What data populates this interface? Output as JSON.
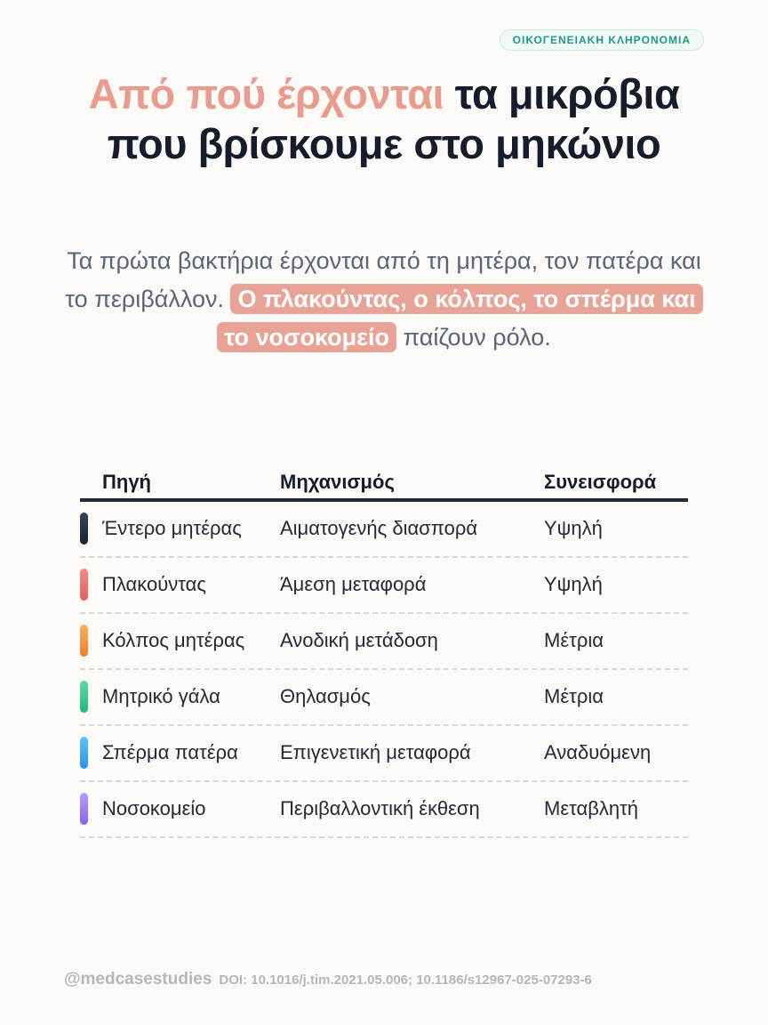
{
  "tag": "ΟΙΚΟΓΕΝΕΙΑΚΗ ΚΛΗΡΟΝΟΜΙΑ",
  "title": {
    "highlight": "Από πού έρχονται",
    "line1_rest": "τα μικρόβια",
    "line2": "που βρίσκουμε στο μηκώνιο"
  },
  "intro": {
    "before": "Τα πρώτα βακτήρια έρχονται από τη μητέρα, τον πατέρα και το περιβάλλον.",
    "highlight": "Ο πλακούντας, ο κόλπος, το σπέρμα και το νοσοκομείο",
    "after": "παίζουν ρόλο."
  },
  "table": {
    "headers": [
      "Πηγή",
      "Μηχανισμός",
      "Συνεισφορά"
    ],
    "rows": [
      [
        "Έντερο μητέρας",
        "Αιματογενής διασπορά",
        "Υψηλή"
      ],
      [
        "Πλακούντας",
        "Άμεση μεταφορά",
        "Υψηλή"
      ],
      [
        "Κόλπος μητέρας",
        "Ανοδική μετάδοση",
        "Μέτρια"
      ],
      [
        "Μητρικό γάλα",
        "Θηλασμός",
        "Μέτρια"
      ],
      [
        "Σπέρμα πατέρα",
        "Επιγενετική μεταφορά",
        "Αναδυόμενη"
      ],
      [
        "Νοσοκομείο",
        "Περιβαλλοντική έκθεση",
        "Μεταβλητή"
      ]
    ]
  },
  "footer": {
    "handle": "@medcasestudies",
    "doi": "DOI: 10.1016/j.tim.2021.05.006; 10.1186/s12967-025-07293-6"
  }
}
